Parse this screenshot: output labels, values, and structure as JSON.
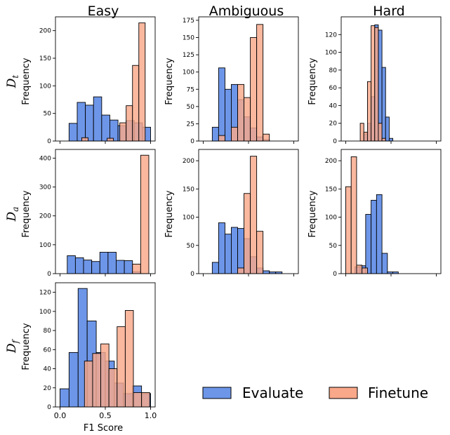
{
  "colors": {
    "evaluate": "#6d96e8",
    "finetune": "#f9a88a",
    "edge": "#000000"
  },
  "column_titles": [
    "Easy",
    "Ambiguous",
    "Hard"
  ],
  "row_labels": [
    {
      "symbol": "D",
      "subscript": "t",
      "ylabel": "Frequency"
    },
    {
      "symbol": "D",
      "subscript": "a",
      "ylabel": "Frequency"
    },
    {
      "symbol": "D",
      "subscript": "f",
      "ylabel": "Frequency"
    }
  ],
  "xlabel": "F1 Score",
  "legend": [
    "Evaluate",
    "Finetune"
  ],
  "chart_data": [
    {
      "type": "bar",
      "row": 0,
      "col": 0,
      "xlim": [
        -0.05,
        1.05
      ],
      "ylim": [
        0,
        225
      ],
      "yticks": [
        0,
        50,
        100,
        150,
        200
      ],
      "xticks": [
        0,
        0.5,
        1.0
      ],
      "series": [
        {
          "name": "Evaluate",
          "bins": [
            [
              0.1,
              0.19,
              32
            ],
            [
              0.19,
              0.28,
              70
            ],
            [
              0.28,
              0.37,
              65
            ],
            [
              0.37,
              0.46,
              80
            ],
            [
              0.46,
              0.55,
              47
            ],
            [
              0.55,
              0.64,
              38
            ],
            [
              0.64,
              0.73,
              28
            ],
            [
              0.73,
              0.82,
              37
            ],
            [
              0.82,
              0.91,
              33
            ],
            [
              0.91,
              1.0,
              25
            ]
          ]
        },
        {
          "name": "Finetune",
          "bins": [
            [
              0.24,
              0.31,
              6
            ],
            [
              0.52,
              0.59,
              5
            ],
            [
              0.66,
              0.73,
              33
            ],
            [
              0.73,
              0.8,
              64
            ],
            [
              0.8,
              0.87,
              137
            ],
            [
              0.87,
              0.94,
              214
            ]
          ]
        }
      ]
    },
    {
      "type": "bar",
      "row": 0,
      "col": 1,
      "xlim": [
        -0.05,
        1.05
      ],
      "ylim": [
        0,
        180
      ],
      "yticks": [
        0,
        25,
        50,
        75,
        100,
        125,
        150,
        175
      ],
      "xticks": [
        0,
        0.5,
        1.0
      ],
      "series": [
        {
          "name": "Evaluate",
          "bins": [
            [
              0.1,
              0.17,
              20
            ],
            [
              0.17,
              0.24,
              106
            ],
            [
              0.24,
              0.31,
              75
            ],
            [
              0.31,
              0.38,
              82
            ],
            [
              0.38,
              0.45,
              60
            ],
            [
              0.45,
              0.52,
              35
            ],
            [
              0.52,
              0.59,
              19
            ],
            [
              0.59,
              0.66,
              6
            ],
            [
              0.66,
              0.73,
              2
            ]
          ]
        },
        {
          "name": "Finetune",
          "bins": [
            [
              0.17,
              0.24,
              8
            ],
            [
              0.31,
              0.38,
              20
            ],
            [
              0.38,
              0.45,
              82
            ],
            [
              0.45,
              0.52,
              63
            ],
            [
              0.52,
              0.59,
              150
            ],
            [
              0.59,
              0.66,
              169
            ],
            [
              0.66,
              0.73,
              10
            ]
          ]
        }
      ]
    },
    {
      "type": "bar",
      "row": 0,
      "col": 2,
      "xlim": [
        -0.05,
        1.05
      ],
      "ylim": [
        0,
        140
      ],
      "yticks": [
        0,
        20,
        40,
        60,
        80,
        100,
        120
      ],
      "xticks": [
        0,
        0.5,
        1.0
      ],
      "series": [
        {
          "name": "Evaluate",
          "bins": [
            [
              0.2,
              0.24,
              8
            ],
            [
              0.24,
              0.28,
              20
            ],
            [
              0.28,
              0.32,
              50
            ],
            [
              0.32,
              0.36,
              131
            ],
            [
              0.36,
              0.4,
              125
            ],
            [
              0.4,
              0.44,
              83
            ],
            [
              0.44,
              0.48,
              27
            ],
            [
              0.48,
              0.52,
              3
            ]
          ]
        },
        {
          "name": "Finetune",
          "bins": [
            [
              0.16,
              0.2,
              20
            ],
            [
              0.2,
              0.24,
              10
            ],
            [
              0.24,
              0.28,
              67
            ],
            [
              0.28,
              0.32,
              130
            ],
            [
              0.32,
              0.36,
              128
            ],
            [
              0.36,
              0.4,
              20
            ],
            [
              0.4,
              0.44,
              3
            ]
          ]
        }
      ]
    },
    {
      "type": "bar",
      "row": 1,
      "col": 0,
      "xlim": [
        -0.05,
        1.05
      ],
      "ylim": [
        0,
        430
      ],
      "yticks": [
        0,
        100,
        200,
        300,
        400
      ],
      "xticks": [
        0,
        0.5,
        1.0
      ],
      "series": [
        {
          "name": "Evaluate",
          "bins": [
            [
              0.08,
              0.17,
              62
            ],
            [
              0.17,
              0.26,
              55
            ],
            [
              0.26,
              0.35,
              47
            ],
            [
              0.35,
              0.44,
              42
            ],
            [
              0.44,
              0.53,
              74
            ],
            [
              0.53,
              0.62,
              74
            ],
            [
              0.62,
              0.71,
              46
            ],
            [
              0.71,
              0.8,
              45
            ],
            [
              0.8,
              0.89,
              7
            ],
            [
              0.89,
              0.98,
              0
            ]
          ]
        },
        {
          "name": "Finetune",
          "bins": [
            [
              0.8,
              0.89,
              33
            ],
            [
              0.89,
              0.98,
              410
            ]
          ]
        }
      ]
    },
    {
      "type": "bar",
      "row": 1,
      "col": 1,
      "xlim": [
        -0.05,
        1.05
      ],
      "ylim": [
        0,
        220
      ],
      "yticks": [
        0,
        50,
        100,
        150,
        200
      ],
      "xticks": [
        0,
        0.5,
        1.0
      ],
      "series": [
        {
          "name": "Evaluate",
          "bins": [
            [
              0.1,
              0.17,
              20
            ],
            [
              0.17,
              0.24,
              90
            ],
            [
              0.24,
              0.31,
              70
            ],
            [
              0.31,
              0.38,
              82
            ],
            [
              0.38,
              0.45,
              80
            ],
            [
              0.45,
              0.52,
              62
            ],
            [
              0.52,
              0.59,
              30
            ],
            [
              0.59,
              0.66,
              10
            ],
            [
              0.66,
              0.73,
              5
            ],
            [
              0.73,
              0.8,
              3
            ],
            [
              0.8,
              0.87,
              3
            ]
          ]
        },
        {
          "name": "Finetune",
          "bins": [
            [
              0.38,
              0.45,
              10
            ],
            [
              0.45,
              0.52,
              142
            ],
            [
              0.52,
              0.59,
              208
            ],
            [
              0.59,
              0.66,
              75
            ]
          ]
        }
      ]
    },
    {
      "type": "bar",
      "row": 1,
      "col": 2,
      "xlim": [
        -0.05,
        1.05
      ],
      "ylim": [
        0,
        220
      ],
      "yticks": [
        0,
        50,
        100,
        150,
        200
      ],
      "xticks": [
        0,
        0.5,
        1.0
      ],
      "series": [
        {
          "name": "Evaluate",
          "bins": [
            [
              0.1,
              0.16,
              12
            ],
            [
              0.16,
              0.22,
              14
            ],
            [
              0.22,
              0.28,
              105
            ],
            [
              0.28,
              0.34,
              130
            ],
            [
              0.34,
              0.4,
              140
            ],
            [
              0.4,
              0.46,
              36
            ],
            [
              0.46,
              0.52,
              3
            ],
            [
              0.52,
              0.58,
              3
            ]
          ]
        },
        {
          "name": "Finetune",
          "bins": [
            [
              0.0,
              0.06,
              154
            ],
            [
              0.06,
              0.12,
              207
            ],
            [
              0.12,
              0.18,
              15
            ],
            [
              0.18,
              0.24,
              10
            ]
          ]
        }
      ]
    },
    {
      "type": "bar",
      "row": 2,
      "col": 0,
      "xlim": [
        -0.05,
        1.05
      ],
      "ylim": [
        0,
        130
      ],
      "yticks": [
        0,
        20,
        40,
        60,
        80,
        100,
        120
      ],
      "xticks": [
        0,
        0.5,
        1.0
      ],
      "xtick_labels": [
        "0.0",
        "0.5",
        "1.0"
      ],
      "series": [
        {
          "name": "Evaluate",
          "bins": [
            [
              0.0,
              0.1,
              19
            ],
            [
              0.1,
              0.2,
              57
            ],
            [
              0.2,
              0.3,
              124
            ],
            [
              0.3,
              0.4,
              90
            ],
            [
              0.4,
              0.5,
              57
            ],
            [
              0.5,
              0.6,
              48
            ],
            [
              0.6,
              0.7,
              25
            ],
            [
              0.7,
              0.8,
              14
            ],
            [
              0.8,
              0.9,
              22
            ],
            [
              0.9,
              1.0,
              14
            ]
          ]
        },
        {
          "name": "Finetune",
          "bins": [
            [
              0.27,
              0.36,
              48
            ],
            [
              0.36,
              0.45,
              56
            ],
            [
              0.45,
              0.54,
              66
            ],
            [
              0.54,
              0.63,
              40
            ],
            [
              0.63,
              0.72,
              84
            ],
            [
              0.72,
              0.81,
              101
            ],
            [
              0.81,
              0.9,
              15
            ],
            [
              0.9,
              0.99,
              15
            ]
          ]
        }
      ]
    }
  ]
}
